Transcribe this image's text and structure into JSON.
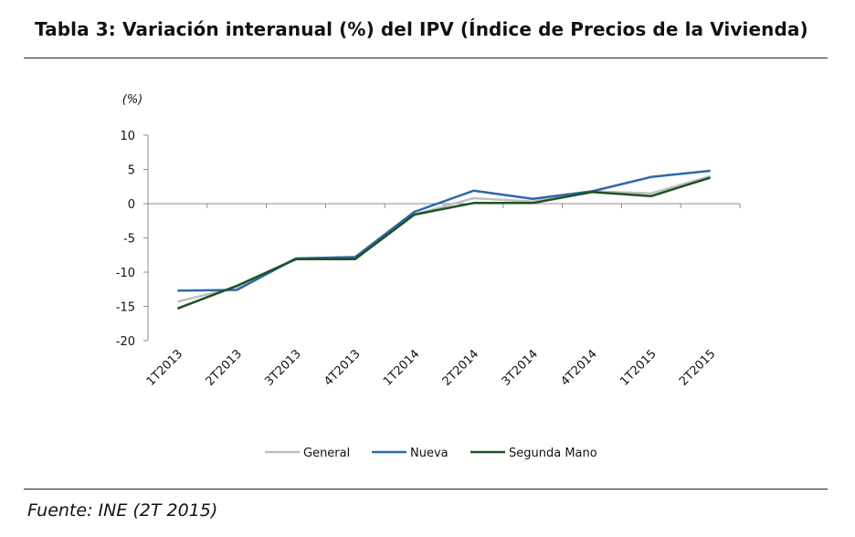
{
  "page": {
    "title": "Tabla 3:  Variación interanual (%) del IPV (Índice de Precios de la Vivienda)",
    "source": "Fuente:  INE (2T 2015)"
  },
  "chart_data": {
    "type": "line",
    "title": "Tabla 3:  Variación interanual (%) del IPV (Índice de Precios de la Vivienda)",
    "ylabel": "(%)",
    "xlabel": "",
    "ylim": [
      -20,
      10
    ],
    "yticks": [
      10,
      5,
      0,
      -5,
      -10,
      -15,
      -20
    ],
    "grid": false,
    "legend_position": "bottom",
    "categories": [
      "1T2013",
      "2T2013",
      "3T2013",
      "4T2013",
      "1T2014",
      "2T2014",
      "3T2014",
      "4T2014",
      "1T2015",
      "2T2015"
    ],
    "series": [
      {
        "name": "General",
        "color": "#bfbfbf",
        "values": [
          -14.3,
          -12.2,
          -8.0,
          -7.8,
          -1.6,
          0.8,
          0.3,
          1.8,
          1.5,
          4.0
        ]
      },
      {
        "name": "Nueva",
        "color": "#2e67a8",
        "values": [
          -12.7,
          -12.6,
          -8.0,
          -7.8,
          -1.2,
          1.9,
          0.7,
          1.8,
          3.9,
          4.8
        ]
      },
      {
        "name": "Segunda Mano",
        "color": "#1d5221",
        "values": [
          -15.3,
          -12.0,
          -8.1,
          -8.1,
          -1.6,
          0.1,
          0.1,
          1.7,
          1.1,
          3.8
        ]
      }
    ]
  }
}
